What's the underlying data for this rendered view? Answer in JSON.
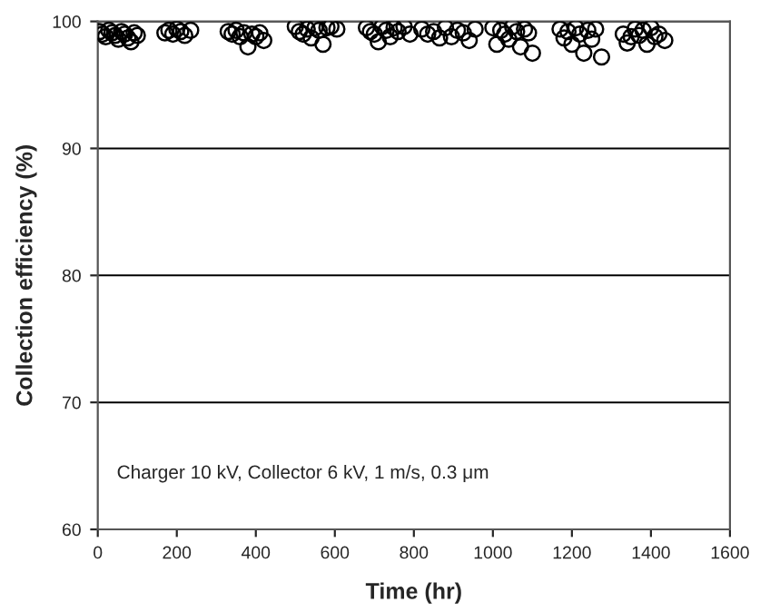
{
  "chart_data": {
    "type": "scatter",
    "xlabel": "Time (hr)",
    "ylabel": "Collection efficiency (%)",
    "annotations": [
      "Charger 10 kV, Collector 6 kV, 1 m/s, 0.3 μm"
    ],
    "series": [
      {
        "color": "#000000",
        "x": [
          5,
          12,
          20,
          28,
          36,
          44,
          52,
          60,
          68,
          76,
          84,
          92,
          100,
          170,
          180,
          190,
          200,
          210,
          220,
          235,
          330,
          340,
          350,
          360,
          370,
          380,
          390,
          400,
          410,
          420,
          500,
          510,
          520,
          530,
          540,
          550,
          560,
          570,
          580,
          590,
          605,
          680,
          690,
          700,
          710,
          720,
          730,
          740,
          750,
          760,
          775,
          790,
          820,
          835,
          850,
          865,
          880,
          895,
          910,
          925,
          940,
          955,
          1000,
          1010,
          1020,
          1030,
          1040,
          1050,
          1060,
          1070,
          1080,
          1090,
          1100,
          1170,
          1180,
          1190,
          1200,
          1210,
          1220,
          1230,
          1240,
          1250,
          1260,
          1275,
          1330,
          1340,
          1350,
          1360,
          1370,
          1380,
          1390,
          1400,
          1410,
          1420,
          1435
        ],
        "values": [
          99.2,
          99.0,
          98.8,
          99.3,
          99.1,
          98.9,
          98.6,
          99.2,
          99.0,
          98.7,
          98.4,
          99.1,
          98.9,
          99.1,
          99.3,
          99.0,
          99.4,
          99.2,
          98.9,
          99.3,
          99.2,
          99.0,
          99.3,
          98.8,
          99.1,
          98.0,
          99.0,
          98.8,
          99.1,
          98.5,
          99.6,
          99.2,
          99.0,
          99.4,
          98.7,
          99.5,
          99.3,
          98.2,
          99.5,
          99.6,
          99.4,
          99.5,
          99.2,
          99.0,
          98.4,
          99.6,
          99.3,
          98.8,
          99.5,
          99.2,
          99.6,
          99.0,
          99.4,
          99.0,
          99.2,
          98.7,
          99.5,
          98.8,
          99.3,
          99.1,
          98.5,
          99.4,
          99.5,
          98.2,
          99.3,
          99.0,
          98.6,
          99.6,
          99.2,
          98.0,
          99.4,
          99.1,
          97.5,
          99.4,
          98.7,
          99.2,
          98.2,
          99.5,
          99.0,
          97.5,
          99.3,
          98.6,
          99.4,
          97.2,
          99.0,
          98.3,
          98.8,
          99.4,
          98.9,
          99.3,
          98.2,
          99.5,
          98.8,
          99.0,
          98.5
        ]
      }
    ],
    "xlim": [
      0,
      1600
    ],
    "xticks": [
      0,
      200,
      400,
      600,
      800,
      1000,
      1200,
      1400,
      1600
    ],
    "ylim": [
      60,
      100
    ],
    "yticks": [
      60,
      70,
      80,
      90,
      100
    ],
    "grid": "y",
    "marker": "circle"
  }
}
